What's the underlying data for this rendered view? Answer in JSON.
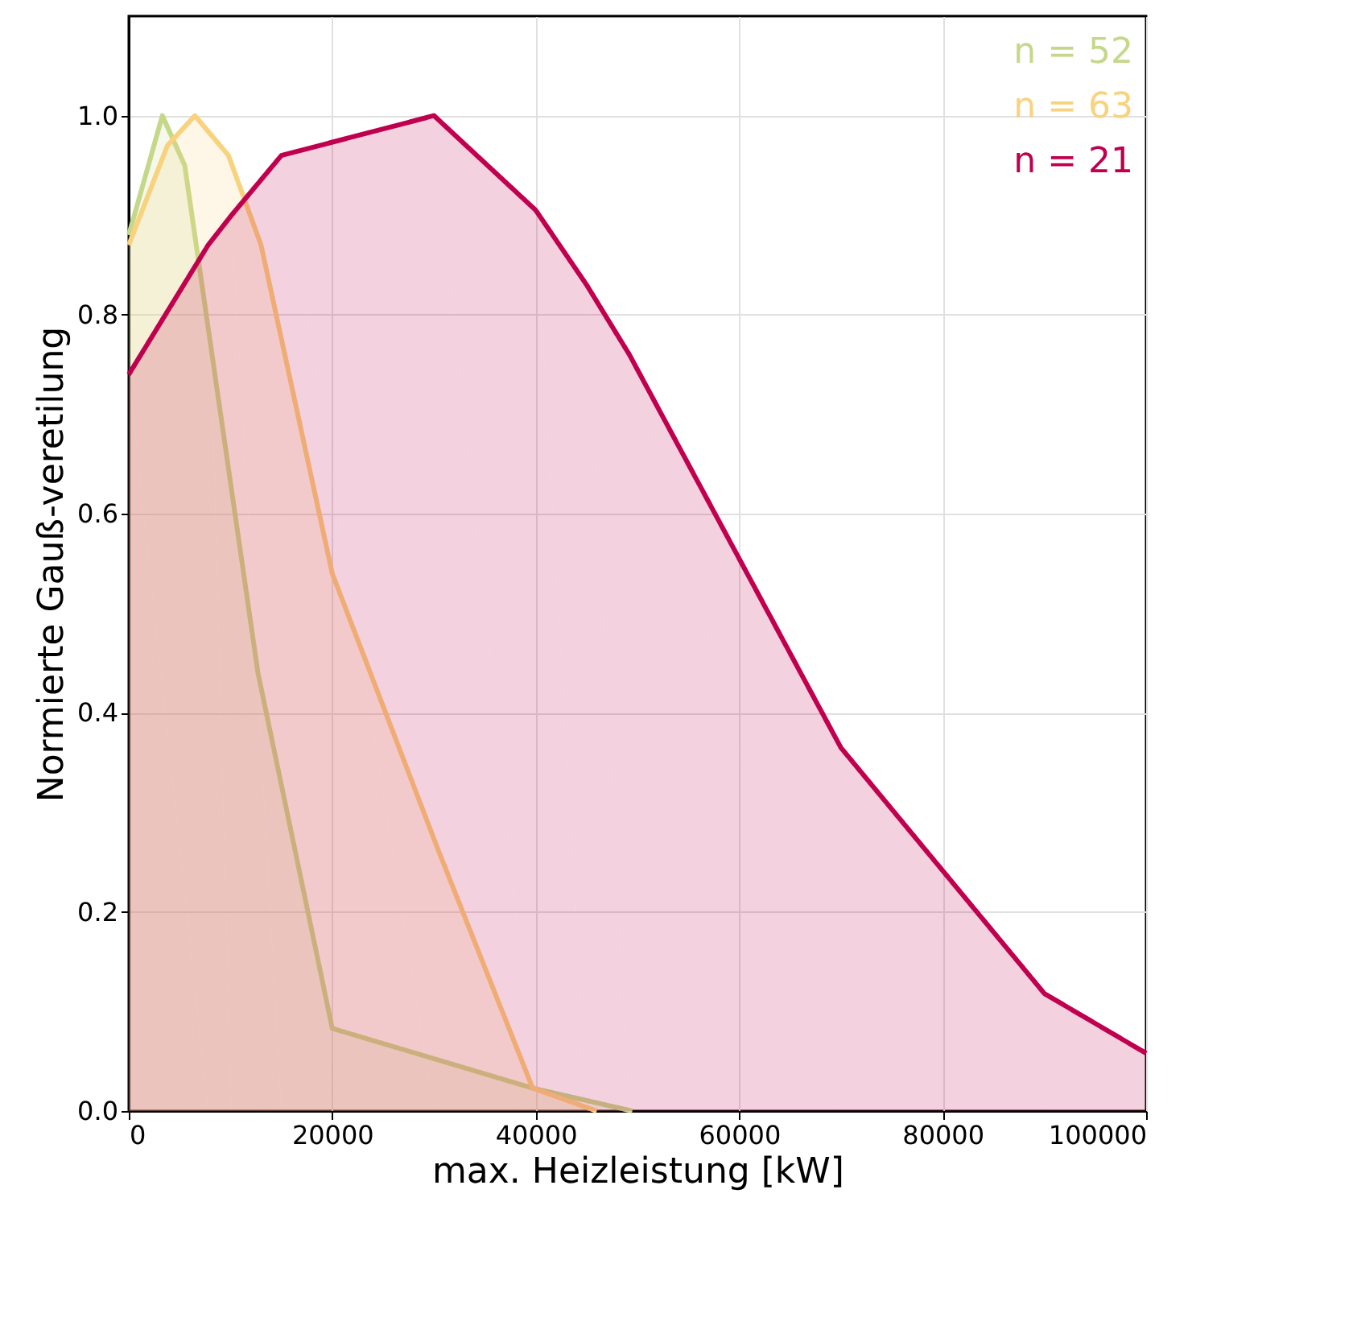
{
  "chart_data": {
    "type": "area",
    "xlabel": "max. Heizleistung [kW]",
    "ylabel": "Normierte Gauß-veretilung",
    "xlim": [
      0,
      100000
    ],
    "ylim": [
      0,
      1.1
    ],
    "xticks": [
      0,
      20000,
      40000,
      60000,
      80000,
      100000
    ],
    "yticks": [
      {
        "value": 0,
        "label": "0.0"
      },
      {
        "value": 0.2,
        "label": "0.2"
      },
      {
        "value": 0.4,
        "label": "0.4"
      },
      {
        "value": 0.6,
        "label": "0.6"
      },
      {
        "value": 0.8,
        "label": "0.8"
      },
      {
        "value": 1.0,
        "label": "1.0"
      }
    ],
    "grid": true,
    "legend": "top right",
    "series": [
      {
        "name": "n = 52",
        "color": "#c5d88a",
        "x": [
          0,
          3300,
          5500,
          12700,
          20000,
          39700,
          49500
        ],
        "values": [
          0.88,
          1.0,
          0.95,
          0.44,
          0.083,
          0.023,
          0
        ]
      },
      {
        "name": "n = 63",
        "color": "#f9d27e",
        "x": [
          0,
          3800,
          6500,
          9800,
          13000,
          20000,
          30500,
          39700,
          46000
        ],
        "values": [
          0.87,
          0.97,
          1.0,
          0.96,
          0.87,
          0.54,
          0.26,
          0.023,
          0
        ]
      },
      {
        "name": "n = 21",
        "color": "#c0004f",
        "x": [
          0,
          7800,
          10100,
          15000,
          30000,
          40000,
          45000,
          49200,
          70000,
          90000,
          100000
        ],
        "values": [
          0.74,
          0.87,
          0.9,
          0.96,
          1.0,
          0.905,
          0.83,
          0.76,
          0.365,
          0.118,
          0.058
        ]
      }
    ]
  }
}
